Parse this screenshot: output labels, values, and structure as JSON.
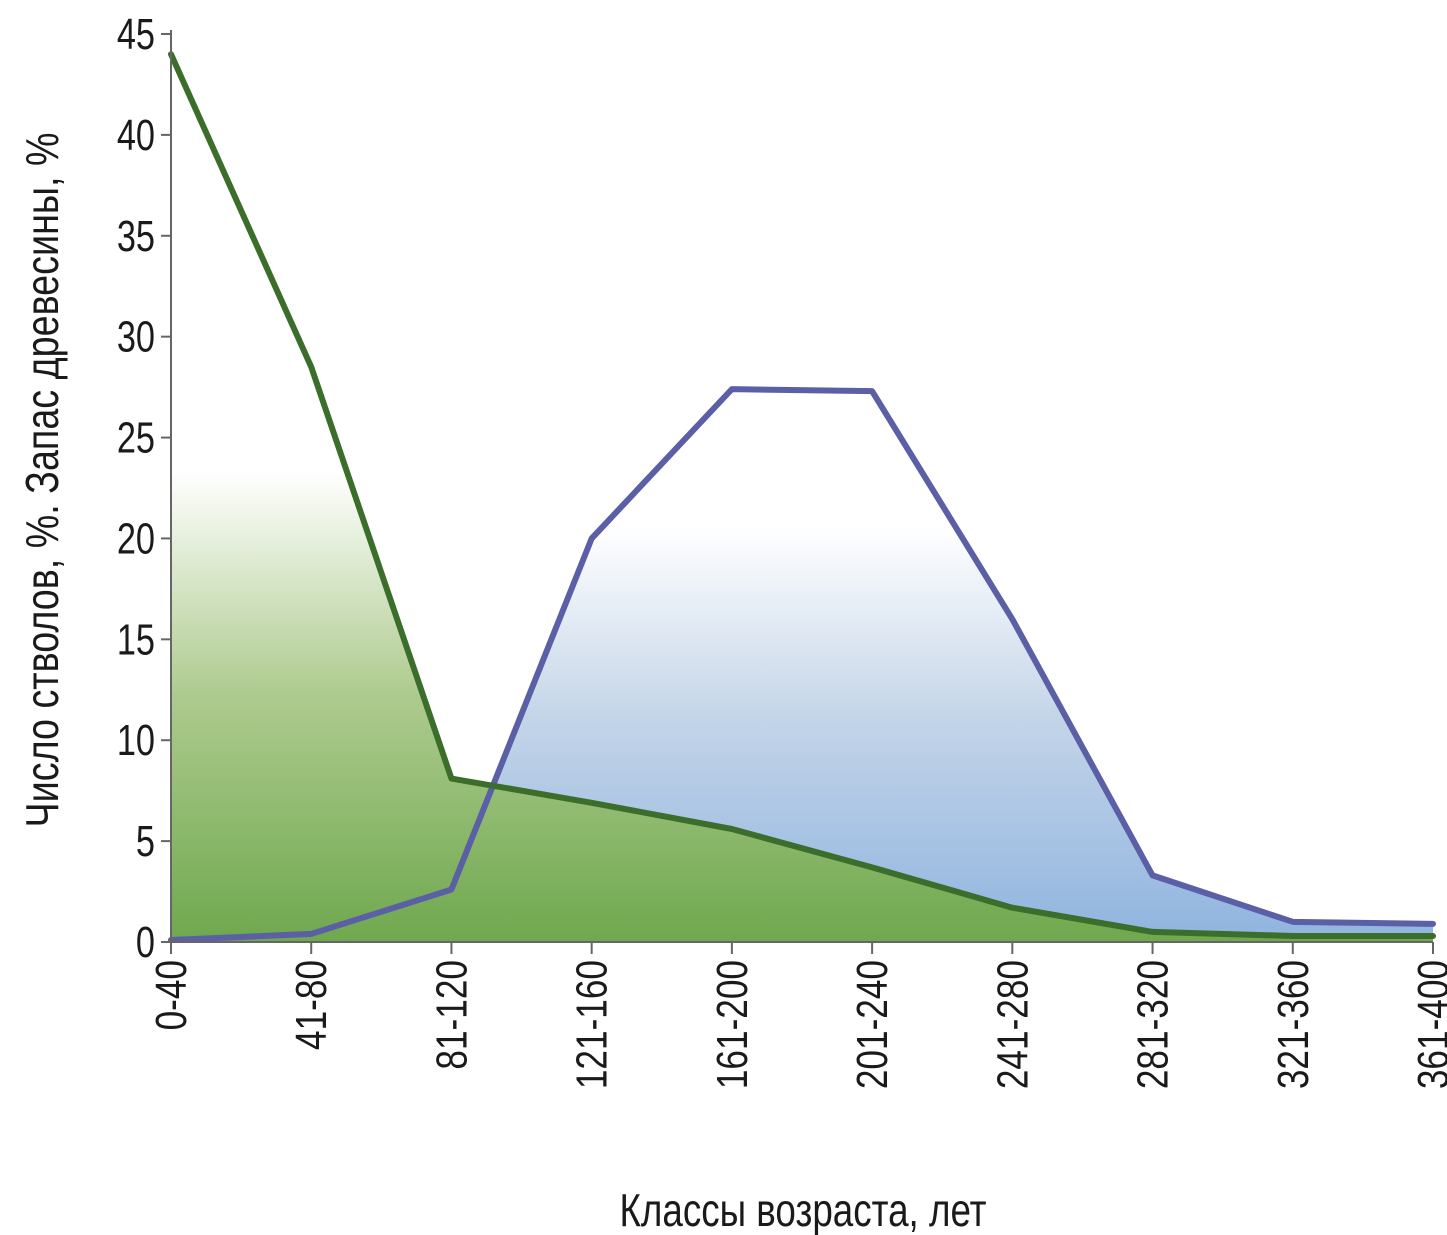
{
  "chart_data": {
    "type": "area",
    "title": "",
    "xlabel": "Классы возраста, лет",
    "ylabel": "Число стволов, %. Запас древесины, %",
    "categories": [
      "0-40",
      "41-80",
      "81-120",
      "121-160",
      "161-200",
      "201-240",
      "241-280",
      "281-320",
      "321-360",
      "361-400"
    ],
    "ylim": [
      0,
      45
    ],
    "yticks": [
      0,
      5,
      10,
      15,
      20,
      25,
      30,
      35,
      40,
      45
    ],
    "grid": false,
    "legend": "none",
    "series": [
      {
        "color": "#3a6e2a",
        "fill_color": "#6fa84e",
        "points": [
          {
            "x": "0-40",
            "y": 44
          },
          {
            "x": "41-80",
            "y": 28.5
          },
          {
            "x": "81-120",
            "y": 8.1
          },
          {
            "x": "121-160",
            "y": 6.9
          },
          {
            "x": "161-200",
            "y": 5.6
          },
          {
            "x": "201-240",
            "y": 3.7
          },
          {
            "x": "241-280",
            "y": 1.7
          },
          {
            "x": "281-320",
            "y": 0.5
          },
          {
            "x": "321-360",
            "y": 0.3
          },
          {
            "x": "361-400",
            "y": 0.3
          }
        ]
      },
      {
        "color": "#5a5fa6",
        "fill_color": "#8fb4df",
        "points": [
          {
            "x": "0-40",
            "y": 0.1
          },
          {
            "x": "41-80",
            "y": 0.4
          },
          {
            "x": "81-120",
            "y": 2.6
          },
          {
            "x": "121-160",
            "y": 20
          },
          {
            "x": "161-200",
            "y": 27.4
          },
          {
            "x": "201-240",
            "y": 27.3
          },
          {
            "x": "241-280",
            "y": 16
          },
          {
            "x": "281-320",
            "y": 3.3
          },
          {
            "x": "321-360",
            "y": 1
          },
          {
            "x": "361-400",
            "y": 0.9
          }
        ]
      }
    ]
  }
}
